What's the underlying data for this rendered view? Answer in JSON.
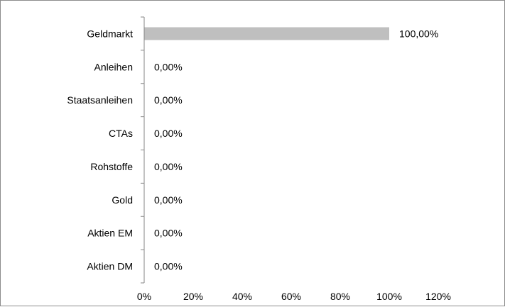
{
  "chart_data": {
    "type": "bar",
    "orientation": "horizontal",
    "categories": [
      "Geldmarkt",
      "Anleihen",
      "Staatsanleihen",
      "CTAs",
      "Rohstoffe",
      "Gold",
      "Aktien EM",
      "Aktien DM"
    ],
    "values": [
      100,
      0,
      0,
      0,
      0,
      0,
      0,
      0
    ],
    "data_labels": [
      "100,00%",
      "0,00%",
      "0,00%",
      "0,00%",
      "0,00%",
      "0,00%",
      "0,00%",
      "0,00%"
    ],
    "x_ticks": [
      "0%",
      "20%",
      "40%",
      "60%",
      "80%",
      "100%",
      "120%"
    ],
    "xlim": [
      0,
      120
    ],
    "unit": "%",
    "grid": false,
    "legend": "none",
    "bar_color": "#bfbfbf",
    "axis_color": "#868686"
  }
}
